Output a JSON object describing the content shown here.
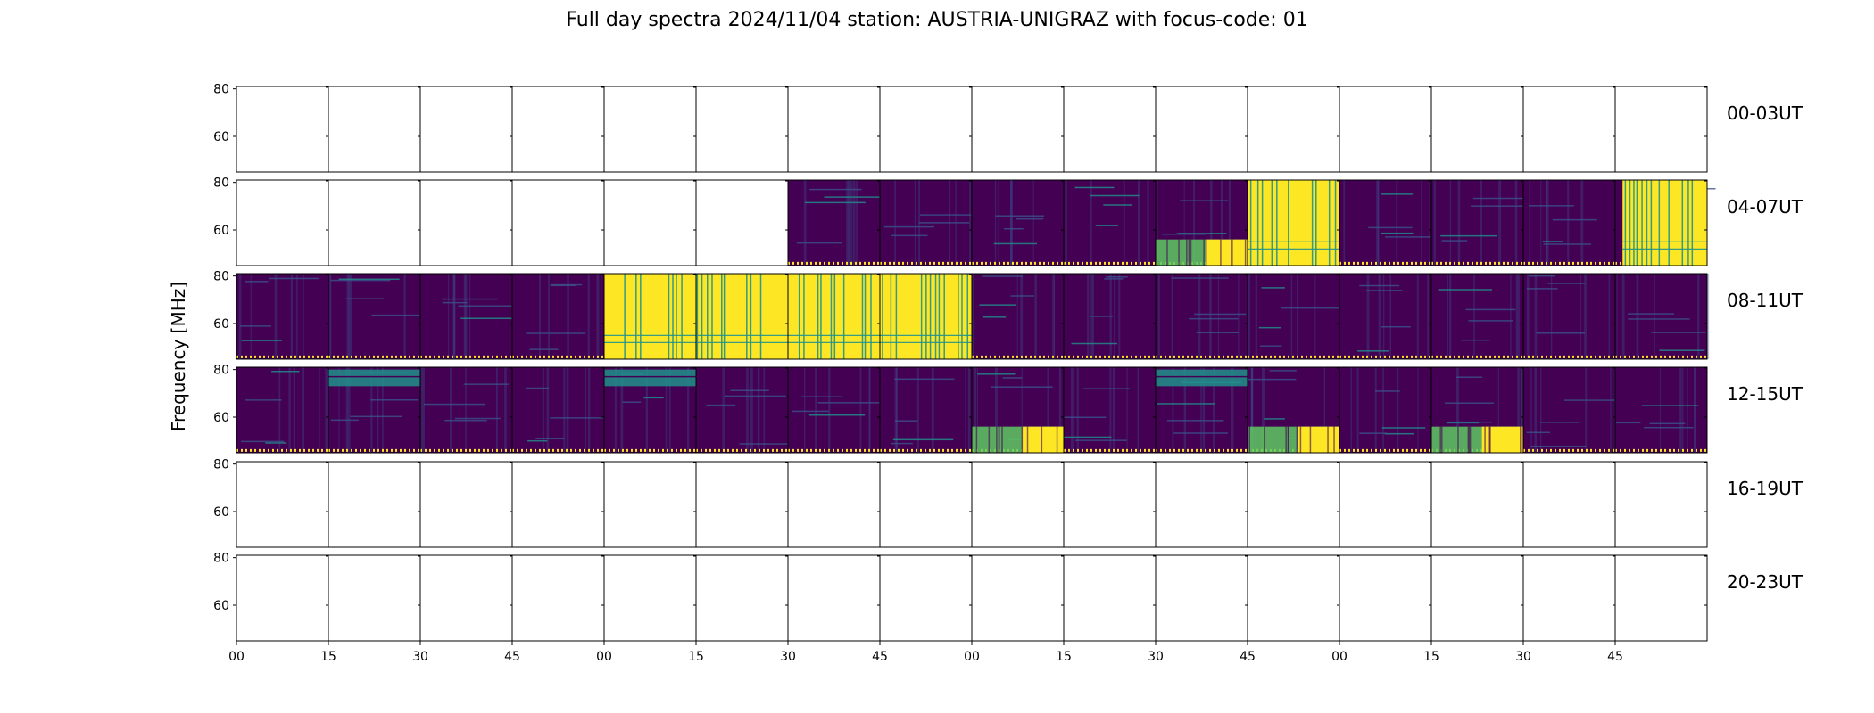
{
  "title": "Full day spectra 2024/11/04 station: AUSTRIA-UNIGRAZ with focus-code: 01",
  "colors": {
    "background": "#440154",
    "mid": "#3b528b",
    "teal": "#21918c",
    "green": "#5ec962",
    "yellow": "#fde725",
    "axis": "#000000"
  },
  "chart_data": {
    "type": "heatmap",
    "title": "Full day spectra 2024/11/04 station: AUSTRIA-UNIGRAZ with focus-code: 01",
    "ylabel": "Frequency [MHz]",
    "xlabel": "",
    "ylim": [
      45,
      81
    ],
    "yticks": [
      "60",
      "80"
    ],
    "xticks": [
      "00",
      "15",
      "30",
      "45",
      "00",
      "15",
      "30",
      "45",
      "00",
      "15",
      "30",
      "45",
      "00",
      "15",
      "30",
      "45"
    ],
    "panel_minutes": 15,
    "rows": [
      {
        "label": "00-03UT",
        "panels": [
          "empty",
          "empty",
          "empty",
          "empty",
          "empty",
          "empty",
          "empty",
          "empty",
          "empty",
          "empty",
          "empty",
          "empty",
          "empty",
          "empty",
          "empty",
          "empty"
        ]
      },
      {
        "label": "04-07UT",
        "panels": [
          "empty",
          "empty",
          "empty",
          "empty",
          "empty",
          "empty",
          "quiet",
          "quiet",
          "quiet",
          "quiet",
          "burst-low",
          "saturated-partial",
          "quiet",
          "quiet",
          "quiet",
          "saturated-right"
        ]
      },
      {
        "label": "08-11UT",
        "panels": [
          "quiet",
          "quiet",
          "quiet",
          "quiet",
          "saturated",
          "saturated",
          "saturated",
          "saturated",
          "quiet",
          "quiet",
          "quiet",
          "quiet",
          "quiet",
          "quiet",
          "quiet",
          "quiet"
        ]
      },
      {
        "label": "12-15UT",
        "panels": [
          "quiet",
          "band-top",
          "quiet",
          "quiet",
          "band-top",
          "quiet",
          "quiet",
          "quiet",
          "burst-low",
          "quiet",
          "band-top",
          "burst-low",
          "quiet",
          "burst-low",
          "quiet",
          "quiet"
        ]
      },
      {
        "label": "16-19UT",
        "panels": [
          "empty",
          "empty",
          "empty",
          "empty",
          "empty",
          "empty",
          "empty",
          "empty",
          "empty",
          "empty",
          "empty",
          "empty",
          "empty",
          "empty",
          "empty",
          "empty"
        ]
      },
      {
        "label": "20-23UT",
        "panels": [
          "empty",
          "empty",
          "empty",
          "empty",
          "empty",
          "empty",
          "empty",
          "empty",
          "empty",
          "empty",
          "empty",
          "empty",
          "empty",
          "empty",
          "empty",
          "empty"
        ]
      }
    ]
  }
}
